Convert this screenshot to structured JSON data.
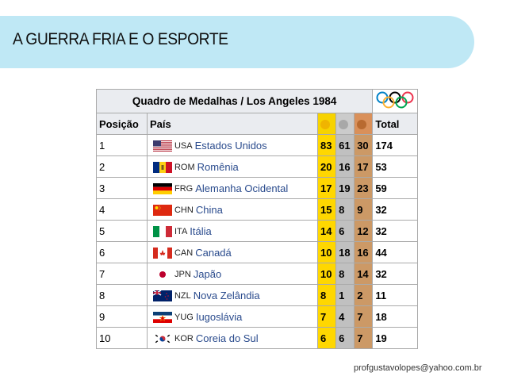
{
  "slide": {
    "title": "A GUERRA FRIA E O ESPORTE",
    "footer": "profgustavolopes@yahoo.com.br"
  },
  "table": {
    "caption": "Quadro de Medalhas / Los Angeles 1984",
    "headers": {
      "position": "Posição",
      "country": "País",
      "total": "Total"
    },
    "colors": {
      "gold": "#ffd700",
      "silver": "#c0c0c0",
      "bronze": "#cc9966"
    },
    "rows": [
      {
        "pos": "1",
        "code": "USA",
        "country": "Estados Unidos",
        "gold": "83",
        "silver": "61",
        "bronze": "30",
        "total": "174"
      },
      {
        "pos": "2",
        "code": "ROM",
        "country": "Romênia",
        "gold": "20",
        "silver": "16",
        "bronze": "17",
        "total": "53"
      },
      {
        "pos": "3",
        "code": "FRG",
        "country": "Alemanha Ocidental",
        "gold": "17",
        "silver": "19",
        "bronze": "23",
        "total": "59"
      },
      {
        "pos": "4",
        "code": "CHN",
        "country": "China",
        "gold": "15",
        "silver": "8",
        "bronze": "9",
        "total": "32"
      },
      {
        "pos": "5",
        "code": "ITA",
        "country": "Itália",
        "gold": "14",
        "silver": "6",
        "bronze": "12",
        "total": "32"
      },
      {
        "pos": "6",
        "code": "CAN",
        "country": "Canadá",
        "gold": "10",
        "silver": "18",
        "bronze": "16",
        "total": "44"
      },
      {
        "pos": "7",
        "code": "JPN",
        "country": "Japão",
        "gold": "10",
        "silver": "8",
        "bronze": "14",
        "total": "32"
      },
      {
        "pos": "8",
        "code": "NZL",
        "country": "Nova Zelândia",
        "gold": "8",
        "silver": "1",
        "bronze": "2",
        "total": "11"
      },
      {
        "pos": "9",
        "code": "YUG",
        "country": "Iugoslávia",
        "gold": "7",
        "silver": "4",
        "bronze": "7",
        "total": "18"
      },
      {
        "pos": "10",
        "code": "KOR",
        "country": "Coreia do Sul",
        "gold": "6",
        "silver": "6",
        "bronze": "7",
        "total": "19"
      }
    ]
  }
}
